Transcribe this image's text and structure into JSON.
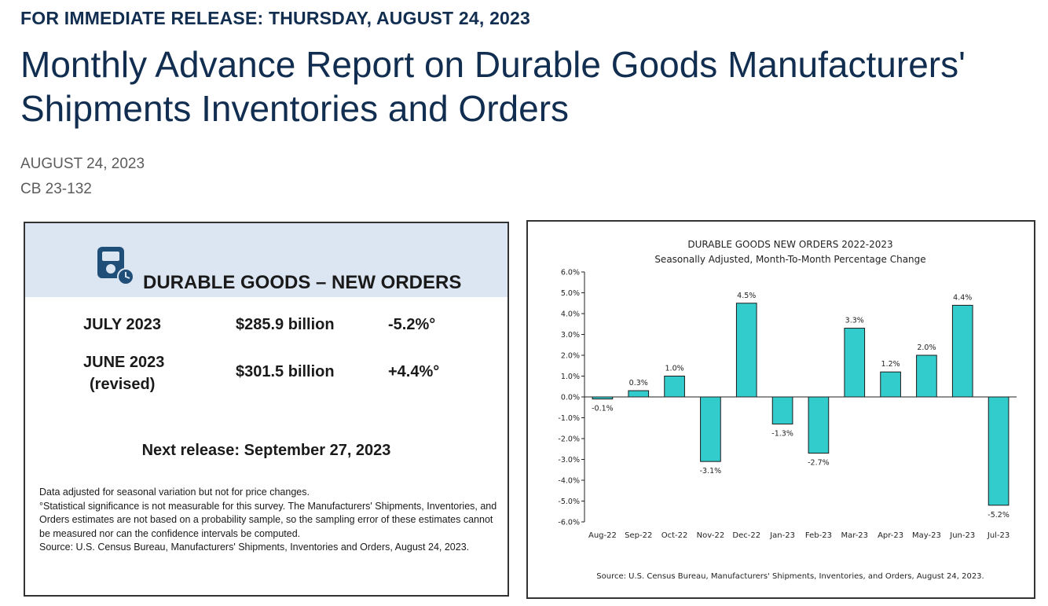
{
  "header": {
    "release_line": "FOR IMMEDIATE RELEASE: THURSDAY, AUGUST 24, 2023",
    "title": "Monthly Advance Report on Durable Goods Manufacturers' Shipments Inventories and Orders",
    "date": "AUGUST 24, 2023",
    "release_id": "CB 23-132"
  },
  "infographic": {
    "title": "DURABLE GOODS – NEW ORDERS",
    "icon": "gauge-device-icon",
    "rows": [
      {
        "period": "JULY 2023",
        "sub": "",
        "value": "$285.9 billion",
        "change": "-5.2%°"
      },
      {
        "period": "JUNE 2023",
        "sub": "(revised)",
        "value": "$301.5 billion",
        "change": "+4.4%°"
      }
    ],
    "next_release": "Next release: September 27, 2023",
    "notes": {
      "line1": "Data adjusted for seasonal variation but not for price changes.",
      "line2": "°Statistical significance is not measurable for this survey.  The Manufacturers' Shipments, Inventories, and Orders estimates are not based on a probability sample, so the sampling error of these estimates cannot be measured nor can the confidence intervals be computed.",
      "line3": "Source: U.S. Census Bureau, Manufacturers' Shipments, Inventories and Orders, August 24, 2023."
    },
    "colors": {
      "band": "#dce6f2",
      "icon": "#1f4e79"
    }
  },
  "chart_data": {
    "type": "bar",
    "title": "DURABLE GOODS NEW ORDERS 2022-2023",
    "subtitle": "Seasonally Adjusted,  Month-To-Month Percentage Change",
    "categories": [
      "Aug-22",
      "Sep-22",
      "Oct-22",
      "Nov-22",
      "Dec-22",
      "Jan-23",
      "Feb-23",
      "Mar-23",
      "Apr-23",
      "May-23",
      "Jun-23",
      "Jul-23"
    ],
    "values": [
      -0.1,
      0.3,
      1.0,
      -3.1,
      4.5,
      -1.3,
      -2.7,
      3.3,
      1.2,
      2.0,
      4.4,
      -5.2
    ],
    "labels": [
      "-0.1%",
      "0.3%",
      "1.0%",
      "-3.1%",
      "4.5%",
      "-1.3%",
      "-2.7%",
      "3.3%",
      "1.2%",
      "2.0%",
      "4.4%",
      "-5.2%"
    ],
    "y_ticks": [
      6,
      5,
      4,
      3,
      2,
      1,
      0,
      -1,
      -2,
      -3,
      -4,
      -5,
      -6
    ],
    "y_tick_labels": [
      "6.0%",
      "5.0%",
      "4.0%",
      "3.0%",
      "2.0%",
      "1.0%",
      "0.0%",
      "-1.0%",
      "-2.0%",
      "-3.0%",
      "-4.0%",
      "-5.0%",
      "-6.0%"
    ],
    "ylim": [
      -6,
      6
    ],
    "xlabel": "",
    "ylabel": "",
    "source": "Source: U.S. Census Bureau, Manufacturers' Shipments, Inventories, and Orders, August 24, 2023.",
    "bar_color": "#33cccc",
    "bar_edge_color": "#1a1a1a"
  }
}
